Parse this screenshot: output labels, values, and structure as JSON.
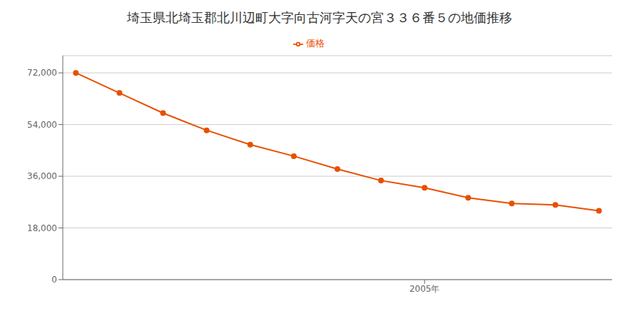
{
  "chart_data": {
    "type": "line",
    "title": "埼玉県北埼玉郡北川辺町大字向古河字天の宮３３６番５の地価推移",
    "x": [
      1997,
      1998,
      1999,
      2000,
      2001,
      2002,
      2003,
      2004,
      2005,
      2006,
      2007,
      2008,
      2009
    ],
    "series": [
      {
        "name": "価格",
        "color": "#E85000",
        "marker": "circle",
        "values": [
          72000,
          65000,
          58000,
          52000,
          47000,
          43000,
          38500,
          34500,
          32000,
          28500,
          26500,
          26000,
          24000
        ]
      }
    ],
    "xlim": [
      1996.7,
      2009.3
    ],
    "xticks": [
      {
        "value": 2005,
        "label": "2005年"
      }
    ],
    "ylim": [
      0,
      78000
    ],
    "yticks": [
      0,
      {
        "value": 18000,
        "label": "18,000"
      },
      {
        "value": 36000,
        "label": "36,000"
      },
      {
        "value": 54000,
        "label": "54,000"
      },
      {
        "value": 72000,
        "label": "72,000"
      }
    ],
    "grid": true,
    "legend": "top"
  }
}
